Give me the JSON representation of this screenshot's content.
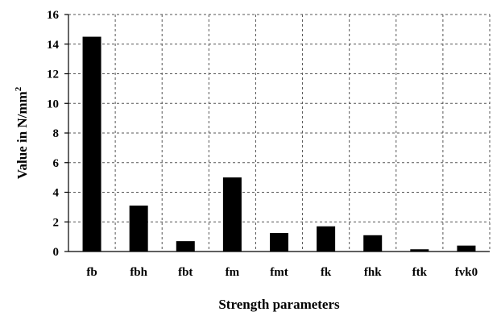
{
  "chart_data": {
    "type": "bar",
    "categories": [
      "fb",
      "fbh",
      "fbt",
      "fm",
      "fmt",
      "fk",
      "fhk",
      "ftk",
      "fvk0"
    ],
    "values": [
      14.5,
      3.1,
      0.7,
      5.0,
      1.25,
      1.7,
      1.1,
      0.15,
      0.4
    ],
    "title": "",
    "xlabel": "Strength parameters",
    "ylabel": "Value in N/mm",
    "ylabel_superscript": "2",
    "ylim": [
      0,
      16
    ],
    "yticks": [
      "0",
      "2",
      "4",
      "6",
      "8",
      "10",
      "12",
      "14",
      "16"
    ],
    "grid": true,
    "bar_color": "#000000"
  }
}
